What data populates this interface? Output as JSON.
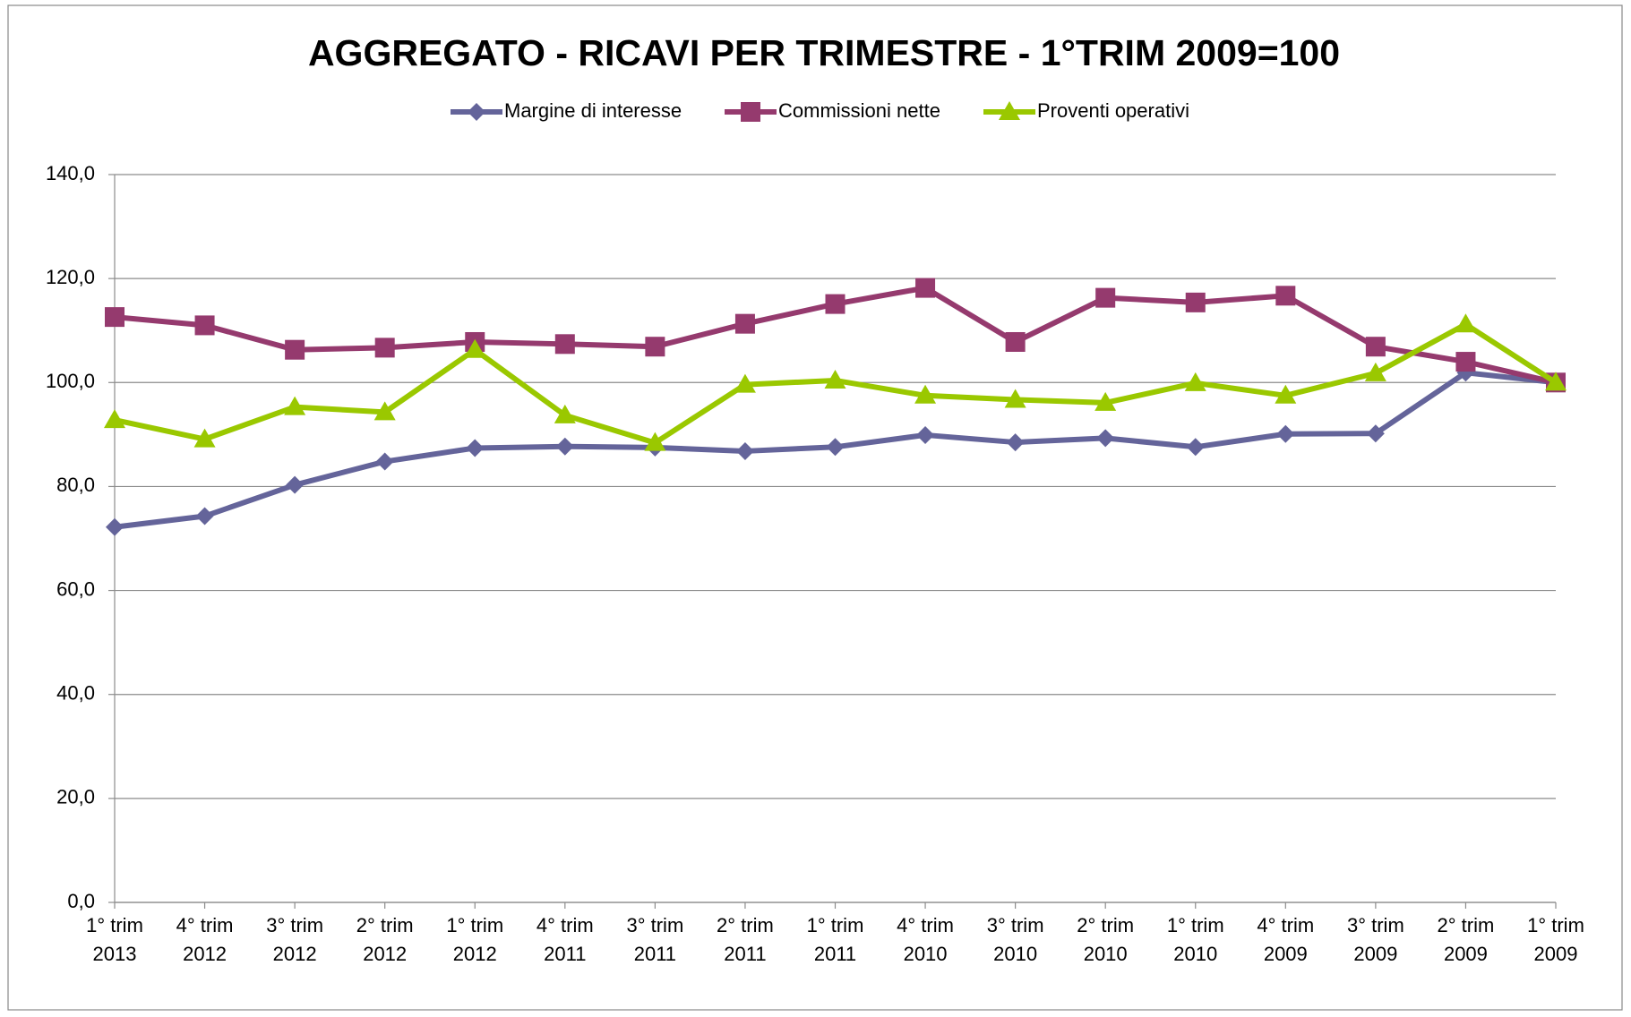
{
  "chart_data": {
    "type": "line",
    "title": "AGGREGATO - RICAVI PER TRIMESTRE - 1°TRIM 2009=100",
    "categories": [
      "1° trim 2013",
      "4° trim 2012",
      "3° trim 2012",
      "2° trim 2012",
      "1° trim 2012",
      "4° trim 2011",
      "3° trim 2011",
      "2° trim 2011",
      "1° trim 2011",
      "4° trim 2010",
      "3° trim 2010",
      "2° trim 2010",
      "1° trim 2010",
      "4° trim 2009",
      "3° trim 2009",
      "2° trim 2009",
      "1° trim 2009"
    ],
    "series": [
      {
        "name": "Margine di interesse",
        "color": "#64649a",
        "marker": "diamond",
        "values": [
          72.2,
          74.3,
          80.3,
          84.8,
          87.4,
          87.7,
          87.5,
          86.8,
          87.6,
          89.9,
          88.5,
          89.3,
          87.6,
          90.1,
          90.2,
          101.9,
          100.0
        ]
      },
      {
        "name": "Commissioni nette",
        "color": "#953a6e",
        "marker": "square",
        "values": [
          112.6,
          111.0,
          106.3,
          106.7,
          107.8,
          107.4,
          106.9,
          111.3,
          115.1,
          118.2,
          107.8,
          116.3,
          115.4,
          116.7,
          106.9,
          104.0,
          100.0
        ]
      },
      {
        "name": "Proventi operativi",
        "color": "#9ac800",
        "marker": "triangle",
        "values": [
          92.8,
          89.1,
          95.3,
          94.3,
          106.3,
          93.7,
          88.4,
          99.6,
          100.4,
          97.5,
          96.7,
          96.1,
          99.9,
          97.5,
          101.8,
          111.2,
          100.0
        ]
      }
    ],
    "ylim": [
      0,
      140
    ],
    "yticks": [
      {
        "value": 0,
        "label": "0,0"
      },
      {
        "value": 20,
        "label": "20,0"
      },
      {
        "value": 40,
        "label": "40,0"
      },
      {
        "value": 60,
        "label": "60,0"
      },
      {
        "value": 80,
        "label": "80,0"
      },
      {
        "value": 100,
        "label": "100,0"
      },
      {
        "value": 120,
        "label": "120,0"
      },
      {
        "value": 140,
        "label": "140,0"
      }
    ],
    "grid": true,
    "legend": "top"
  }
}
